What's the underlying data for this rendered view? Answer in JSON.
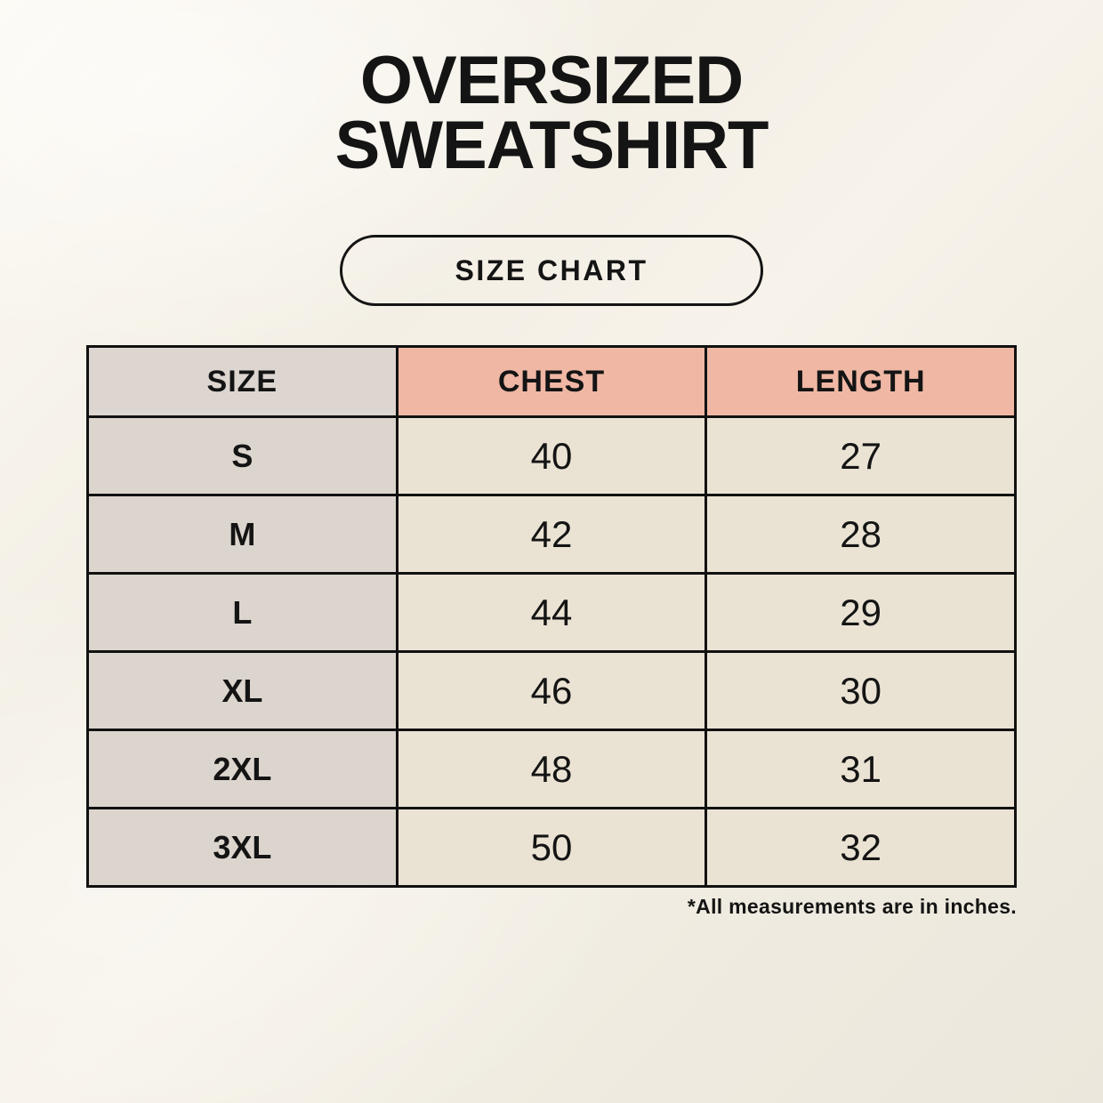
{
  "header": {
    "title_line1": "OVERSIZED",
    "title_line2": "SWEATSHIRT",
    "badge_label": "SIZE CHART"
  },
  "chart_data": {
    "type": "table",
    "title": "Oversized Sweatshirt Size Chart",
    "columns": [
      "SIZE",
      "CHEST",
      "LENGTH"
    ],
    "rows": [
      {
        "size": "S",
        "chest": "40",
        "length": "27"
      },
      {
        "size": "M",
        "chest": "42",
        "length": "28"
      },
      {
        "size": "L",
        "chest": "44",
        "length": "29"
      },
      {
        "size": "XL",
        "chest": "46",
        "length": "30"
      },
      {
        "size": "2XL",
        "chest": "48",
        "length": "31"
      },
      {
        "size": "3XL",
        "chest": "50",
        "length": "32"
      }
    ],
    "units_note": "*All measurements are in inches."
  },
  "colors": {
    "header_accent": "#efb7a4",
    "header_neutral": "#ddd6d0",
    "size_column": "#dcd5ce",
    "cell_background": "#eae3d4",
    "table_border": "#111111",
    "text": "#141414",
    "page_bg_light": "#fcf9f2",
    "page_bg_dark": "#ebe7dc"
  }
}
